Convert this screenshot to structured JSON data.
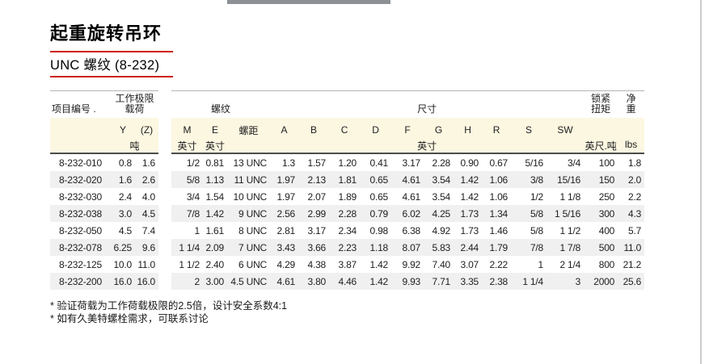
{
  "page": {
    "title": "起重旋转吊环",
    "subtitle": "UNC 螺纹 (8-232)"
  },
  "colors": {
    "accent_red": "#cc2018",
    "header_band": "#fcf7e1",
    "alt_row": "#f0f0f0",
    "top_bar": "#8d9094"
  },
  "table": {
    "group_headers": {
      "item": "项目编号 .",
      "wll_line1": "工作极限",
      "wll_line2": "载荷",
      "thread": "螺纹",
      "dimensions": "尺寸",
      "torque_line1": "锁紧",
      "torque_line2": "扭矩",
      "weight_line1": "净",
      "weight_line2": "重"
    },
    "col_headers": [
      "Y",
      "(Z)",
      "M",
      "E",
      "螺距",
      "A",
      "B",
      "C",
      "D",
      "F",
      "G",
      "H",
      "R",
      "S",
      "SW"
    ],
    "units": {
      "load": "吨",
      "m": "英寸",
      "e": "英寸",
      "dimensions": "英寸",
      "torque": "英尺.吨",
      "weight": "lbs"
    },
    "rows": [
      [
        "8-232-010",
        "0.8",
        "1.6",
        "1/2",
        "0.81",
        "13 UNC",
        "1.3",
        "1.57",
        "1.20",
        "0.41",
        "3.17",
        "2.28",
        "0.90",
        "0.67",
        "5/16",
        "3/4",
        "100",
        "1.8"
      ],
      [
        "8-232-020",
        "1.6",
        "2.6",
        "5/8",
        "1.13",
        "11 UNC",
        "1.97",
        "2.13",
        "1.81",
        "0.65",
        "4.61",
        "3.54",
        "1.42",
        "1.06",
        "3/8",
        "15/16",
        "150",
        "2.0"
      ],
      [
        "8-232-030",
        "2.4",
        "4.0",
        "3/4",
        "1.54",
        "10 UNC",
        "1.97",
        "2.07",
        "1.89",
        "0.65",
        "4.61",
        "3.54",
        "1.42",
        "1.06",
        "1/2",
        "1 1/8",
        "250",
        "2.2"
      ],
      [
        "8-232-038",
        "3.0",
        "4.5",
        "7/8",
        "1.42",
        "9 UNC",
        "2.56",
        "2.99",
        "2.28",
        "0.79",
        "6.02",
        "4.25",
        "1.73",
        "1.34",
        "5/8",
        "1 5/16",
        "300",
        "4.3"
      ],
      [
        "8-232-050",
        "4.5",
        "7.4",
        "1",
        "1.61",
        "8 UNC",
        "2.81",
        "3.17",
        "2.34",
        "0.98",
        "6.38",
        "4.92",
        "1.73",
        "1.46",
        "5/8",
        "1 1/2",
        "400",
        "5.7"
      ],
      [
        "8-232-078",
        "6.25",
        "9.6",
        "1 1/4",
        "2.09",
        "7 UNC",
        "3.43",
        "3.66",
        "2.23",
        "1.18",
        "8.07",
        "5.83",
        "2.44",
        "1.79",
        "7/8",
        "1 7/8",
        "500",
        "11.0"
      ],
      [
        "8-232-125",
        "10.0",
        "11.0",
        "1 1/2",
        "2.40",
        "6 UNC",
        "4.29",
        "4.38",
        "3.87",
        "1.42",
        "9.92",
        "7.40",
        "3.07",
        "2.22",
        "1",
        "2 1/4",
        "800",
        "21.2"
      ],
      [
        "8-232-200",
        "16.0",
        "16.0",
        "2",
        "3.00",
        "4.5 UNC",
        "4.61",
        "3.80",
        "4.46",
        "1.42",
        "9.93",
        "7.71",
        "3.35",
        "2.38",
        "1 1/4",
        "3",
        "2000",
        "25.6"
      ]
    ]
  },
  "footnotes": [
    "* 验证荷载为工作荷载极限的2.5倍，设计安全系数4:1",
    "* 如有久美特螺栓需求，可联系讨论"
  ]
}
